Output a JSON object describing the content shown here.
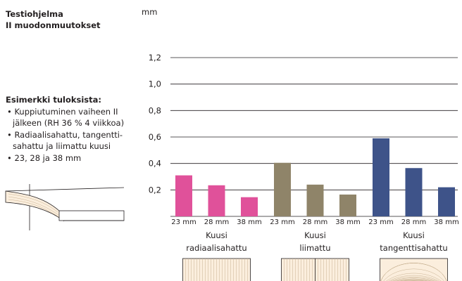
{
  "panel": {
    "title_line1": "Testiohjelma",
    "title_line2": "II muodonmuutokset",
    "results_heading": "Esimerkki tuloksista:",
    "bullets": [
      "• Kuppiutuminen vaiheen II jälkeen (RH 36 % 4 viikkoa)",
      "• Radiaalisahattu, tangentti-sahattu ja liimattu kuusi",
      "• 23, 28 ja 38 mm"
    ]
  },
  "chart_data": {
    "type": "bar",
    "unit_label": "mm",
    "ylim": [
      0,
      1.2
    ],
    "yticks": [
      "1,2",
      "1,0",
      "0,8",
      "0,6",
      "0,4",
      "0,2"
    ],
    "ytick_values": [
      1.2,
      1.0,
      0.8,
      0.6,
      0.4,
      0.2
    ],
    "grid": true,
    "groups": [
      {
        "name_line1": "Kuusi",
        "name_line2": "radiaalisahattu",
        "color": "#e0519a",
        "categories": [
          "23 mm",
          "28 mm",
          "38 mm"
        ],
        "values": [
          0.31,
          0.235,
          0.145
        ]
      },
      {
        "name_line1": "Kuusi",
        "name_line2": "liimattu",
        "color": "#8f8469",
        "categories": [
          "23 mm",
          "28 mm",
          "38 mm"
        ],
        "values": [
          0.405,
          0.24,
          0.165
        ]
      },
      {
        "name_line1": "Kuusi",
        "name_line2": "tangenttisahattu",
        "color": "#3e5389",
        "categories": [
          "23 mm",
          "28 mm",
          "38 mm"
        ],
        "values": [
          0.59,
          0.365,
          0.22
        ]
      }
    ]
  }
}
